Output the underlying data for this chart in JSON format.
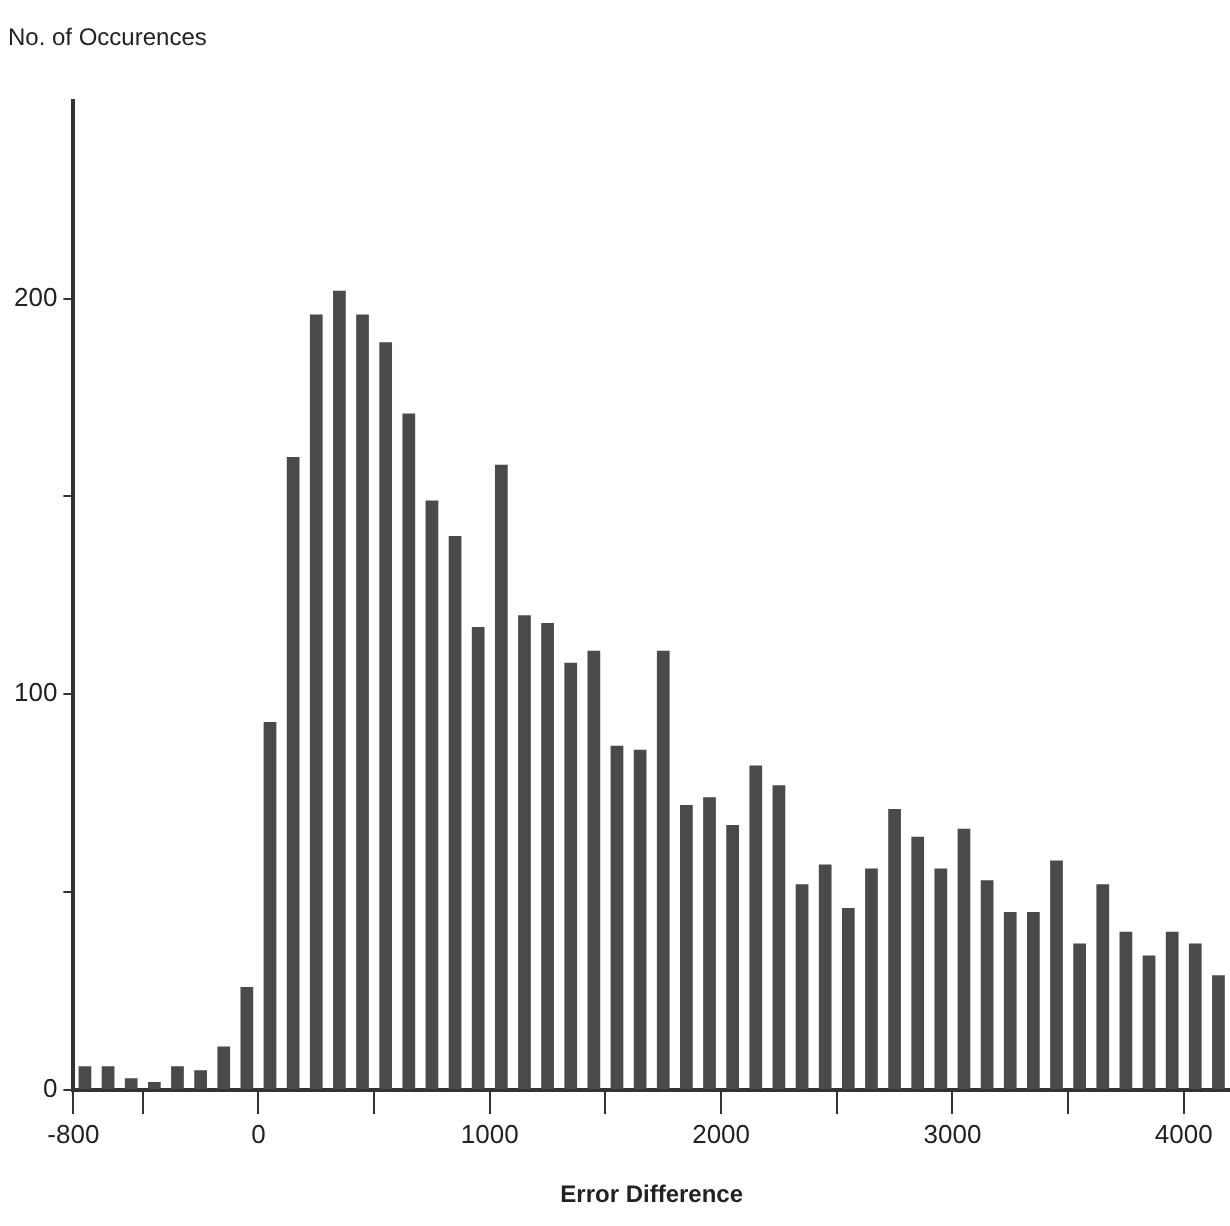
{
  "chart_data": {
    "type": "histogram",
    "xlabel": "Error Difference",
    "ylabel": "No. of Occurences",
    "bins": [
      -800,
      -700,
      -600,
      -500,
      -400,
      -300,
      -200,
      -100,
      0,
      100,
      200,
      300,
      400,
      500,
      600,
      700,
      800,
      900,
      1000,
      1100,
      1200,
      1300,
      1400,
      1500,
      1600,
      1700,
      1800,
      1900,
      2000,
      2100,
      2200,
      2300,
      2400,
      2500,
      2600,
      2700,
      2800,
      2900,
      3000,
      3100,
      3200,
      3300,
      3400,
      3500,
      3600,
      3700,
      3800,
      3900,
      4000,
      4100,
      4200
    ],
    "values": [
      6,
      6,
      3,
      2,
      6,
      5,
      11,
      26,
      93,
      160,
      196,
      202,
      196,
      189,
      171,
      149,
      140,
      117,
      158,
      120,
      118,
      108,
      111,
      87,
      86,
      111,
      72,
      74,
      67,
      82,
      77,
      52,
      57,
      46,
      56,
      71,
      64,
      56,
      66,
      53,
      45,
      45,
      58,
      37,
      52,
      40,
      34,
      40,
      37,
      29
    ],
    "color": "#4a4a4a",
    "xlim": [
      -800,
      4200
    ],
    "xticks": [
      -800,
      {
        "value": -500,
        "label": null
      },
      0,
      {
        "value": 500,
        "label": null
      },
      1000,
      {
        "value": 1500,
        "label": null
      },
      2000,
      {
        "value": 2500,
        "label": null
      },
      3000,
      {
        "value": 3500,
        "label": null
      },
      4000
    ],
    "ylim": [
      0,
      250
    ],
    "yticks": [
      0,
      {
        "value": 50,
        "label": null
      },
      100,
      {
        "value": 150,
        "label": null
      },
      200
    ],
    "grid": false
  }
}
